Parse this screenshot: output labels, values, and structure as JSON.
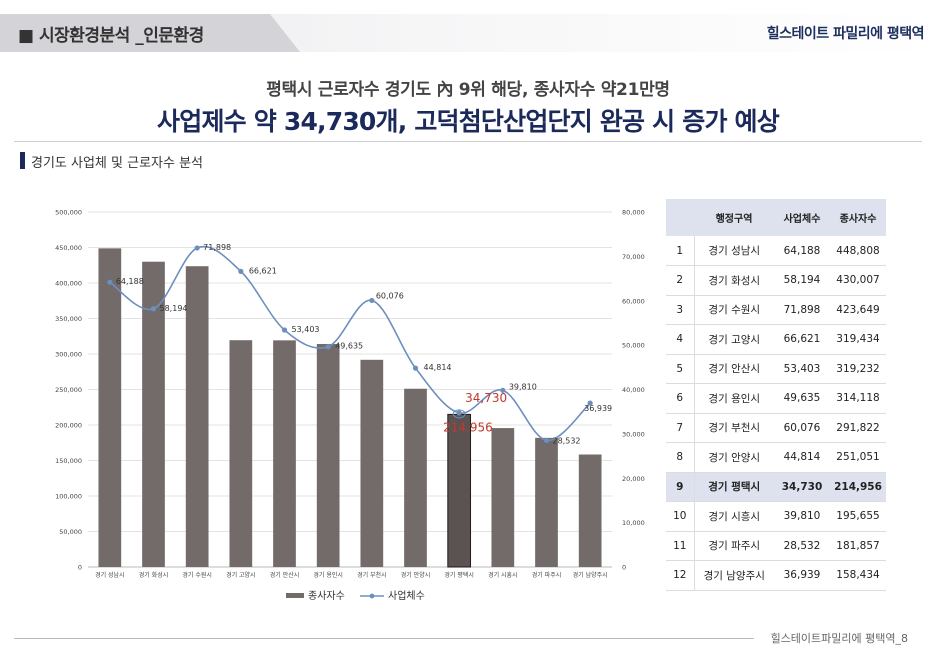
{
  "header": {
    "section": "■ 시장환경분석 _인문환경",
    "brand": "힐스테이트 파밀리에 평택역"
  },
  "subtitle": "평택시 근로자수 경기도 內 9위 해당, 종사자수 약21만명",
  "title": "사업제수 약 34,730개, 고덕첨단산업단지 완공 시 증가 예상",
  "section_label": "경기도 사업체 및 근로자수 분석",
  "chart_data": {
    "type": "bar",
    "categories": [
      "경기 성남시",
      "경기 화성시",
      "경기 수원시",
      "경기 고양시",
      "경기 안산시",
      "경기 용인시",
      "경기 부천시",
      "경기 안양시",
      "경기 평택시",
      "경기 시흥시",
      "경기 파주시",
      "경기 남양주시"
    ],
    "series": [
      {
        "name": "종사자수",
        "type": "bar",
        "axis": "left",
        "color": "#726b6a",
        "values": [
          448808,
          430007,
          423649,
          319434,
          319232,
          314118,
          291822,
          251051,
          214956,
          195655,
          181857,
          158434
        ]
      },
      {
        "name": "사업체수",
        "type": "line",
        "axis": "right",
        "color": "#6d8fbe",
        "values": [
          64188,
          58194,
          71898,
          66621,
          53403,
          49635,
          60076,
          44814,
          34730,
          39810,
          28532,
          36939
        ]
      }
    ],
    "point_labels": [
      "64,188",
      "58,194",
      "71,898",
      "66,621",
      "53,403",
      "49,635",
      "60,076",
      "44,814",
      "34,730",
      "39,810",
      "28,532",
      "36,939"
    ],
    "highlight": {
      "index": 8,
      "bar_label": "214,956",
      "point_label": "34,730",
      "color": "#c0392b",
      "bar_color": "#5a5352"
    },
    "y_left": {
      "min": 0,
      "max": 500000,
      "ticks": [
        "0",
        "50,000",
        "100,000",
        "150,000",
        "200,000",
        "250,000",
        "300,000",
        "350,000",
        "400,000",
        "450,000",
        "500,000"
      ]
    },
    "y_right": {
      "min": 0,
      "max": 80000,
      "ticks": [
        "0",
        "10,000",
        "20,000",
        "30,000",
        "40,000",
        "50,000",
        "60,000",
        "70,000",
        "80,000"
      ]
    },
    "grid": true,
    "legend_position": "bottom"
  },
  "table": {
    "headers": [
      "행정구역",
      "사업체수",
      "종사자수"
    ],
    "rows": [
      {
        "rank": "1",
        "region": "경기 성남시",
        "biz": "64,188",
        "emp": "448,808"
      },
      {
        "rank": "2",
        "region": "경기 화성시",
        "biz": "58,194",
        "emp": "430,007"
      },
      {
        "rank": "3",
        "region": "경기 수원시",
        "biz": "71,898",
        "emp": "423,649"
      },
      {
        "rank": "4",
        "region": "경기 고양시",
        "biz": "66,621",
        "emp": "319,434"
      },
      {
        "rank": "5",
        "region": "경기 안산시",
        "biz": "53,403",
        "emp": "319,232"
      },
      {
        "rank": "6",
        "region": "경기 용인시",
        "biz": "49,635",
        "emp": "314,118"
      },
      {
        "rank": "7",
        "region": "경기 부천시",
        "biz": "60,076",
        "emp": "291,822"
      },
      {
        "rank": "8",
        "region": "경기 안양시",
        "biz": "44,814",
        "emp": "251,051"
      },
      {
        "rank": "9",
        "region": "경기 평택시",
        "biz": "34,730",
        "emp": "214,956"
      },
      {
        "rank": "10",
        "region": "경기 시흥시",
        "biz": "39,810",
        "emp": "195,655"
      },
      {
        "rank": "11",
        "region": "경기 파주시",
        "biz": "28,532",
        "emp": "181,857"
      },
      {
        "rank": "12",
        "region": "경기 남양주시",
        "biz": "36,939",
        "emp": "158,434"
      }
    ],
    "highlight_row": 8
  },
  "footer": "힐스테이트파밀리에 평택역_8"
}
